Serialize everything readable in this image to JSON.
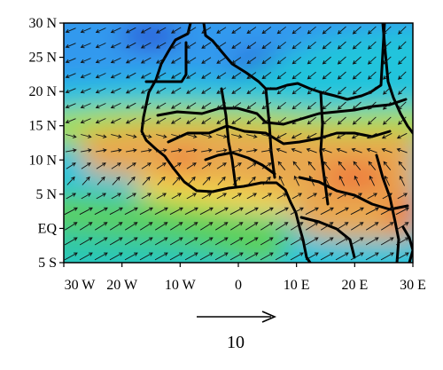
{
  "map": {
    "axes": {
      "lat_ticks": [
        "30 N",
        "25 N",
        "20 N",
        "15 N",
        "10 N",
        "5 N",
        "EQ",
        "5 S"
      ],
      "lon_ticks": [
        "30 W",
        "20 W",
        "10 W",
        "0",
        "10 E",
        "20 E",
        "30 E"
      ],
      "lat_range": [
        -5,
        30
      ],
      "lon_range": [
        -30,
        30
      ]
    },
    "reference_vector": {
      "label": "10",
      "magnitude": 10
    },
    "colors": {
      "dark_blue": "#2f4fd6",
      "blue": "#3399ee",
      "cyan": "#22c4dc",
      "teal": "#2ec8a8",
      "green": "#5cd05a",
      "light_green": "#a6e044",
      "yellow": "#f2d84a",
      "orange": "#e8a850",
      "red_orange": "#ee7a3c",
      "land_border": "#000000",
      "arrow": "#111111"
    }
  }
}
